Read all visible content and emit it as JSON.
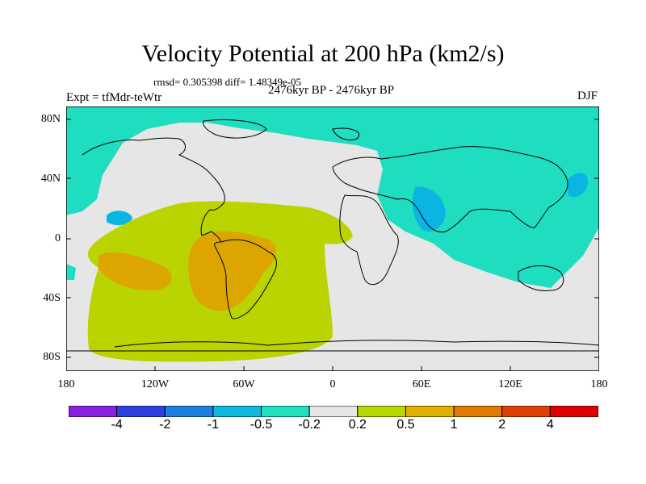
{
  "title": "Velocity Potential at 200 hPa (km2/s)",
  "stats": "rmsd= 0.305398 diff= 1.48349e-05",
  "subtitle": "2476kyr BP - 2476kyr BP",
  "experiment": "Expt = tfMdr-teWtr",
  "season": "DJF",
  "chart_data": {
    "type": "heatmap",
    "projection": "cylindrical-equidistant",
    "lon_range": [
      -180,
      180
    ],
    "lat_range": [
      -90,
      90
    ],
    "y_tick_labels": [
      "80N",
      "40N",
      "0",
      "40S",
      "80S"
    ],
    "x_tick_labels": [
      "180",
      "120W",
      "60W",
      "0",
      "60E",
      "120E",
      "180"
    ],
    "colorbar": {
      "labels": [
        "-4",
        "-2",
        "-1",
        "-0.5",
        "-0.2",
        "0.2",
        "0.5",
        "1",
        "2",
        "4"
      ],
      "colors": [
        "#8a1fe6",
        "#2f3fe0",
        "#1f7fe0",
        "#10b8e0",
        "#20e0c0",
        "#e6e6e6",
        "#b8d800",
        "#e0b000",
        "#e07a00",
        "#e04000",
        "#e00000"
      ]
    },
    "field_colors": {
      "background": "#e6e6e6",
      "neg_weak": "#1fddc0",
      "neg_mid": "#0ab5e3",
      "pos_weak": "#b9d400",
      "pos_mid": "#dca500"
    }
  }
}
